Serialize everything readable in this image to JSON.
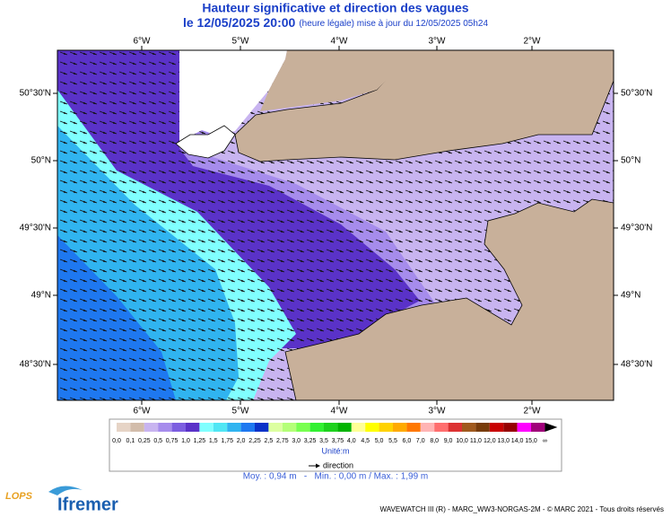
{
  "header": {
    "title": "Hauteur significative et direction des vagues",
    "date": "le 12/05/2025 20:00",
    "note": "(heure légale) mise à jour du 12/05/2025 05h24"
  },
  "map": {
    "lon_labels": [
      "6°W",
      "5°W",
      "4°W",
      "3°W",
      "2°W"
    ],
    "lat_labels": [
      "50°30'N",
      "50°N",
      "49°30'N",
      "49°N",
      "48°30'N"
    ]
  },
  "legend": {
    "labels": [
      "0,0",
      "0,1",
      "0,25",
      "0,5",
      "0,75",
      "1,0",
      "1,25",
      "1,5",
      "1,75",
      "2,0",
      "2,25",
      "2,5",
      "2,75",
      "3,0",
      "3,25",
      "3,5",
      "3,75",
      "4,0",
      "4,5",
      "5,0",
      "5,5",
      "6,0",
      "7,0",
      "8,0",
      "9,0",
      "10,0",
      "11,0",
      "12,0",
      "13,0",
      "14,0",
      "15,0",
      "∞"
    ],
    "colors": [
      "#e6d4c6",
      "#d2bcaa",
      "#c8b4f0",
      "#a68cec",
      "#7c5ee0",
      "#5a32c8",
      "#80ffff",
      "#50e6f4",
      "#30b4f0",
      "#1e78f0",
      "#0a32c8",
      "#dcffa0",
      "#b4ff78",
      "#78ff50",
      "#32f032",
      "#1ed21e",
      "#00b400",
      "#ffff96",
      "#ffff00",
      "#ffd200",
      "#ffaa00",
      "#ff7800",
      "#ffb4b4",
      "#ff6e6e",
      "#dc3232",
      "#a05a1e",
      "#783c0a",
      "#c80000",
      "#960000",
      "#ff00ff",
      "#a0007a"
    ],
    "unit": "Unité:m",
    "direction": "direction",
    "stats": "Moy. : 0,94 m   -   Min. : 0,00 m / Max. : 1,99 m"
  },
  "footer": {
    "credit": "WAVEWATCH III (R) - MARC_WW3-NORGAS-2M - © MARC 2021 - Tous droits réservés",
    "logo1": "LOPS",
    "logo2": "Ifremer"
  }
}
